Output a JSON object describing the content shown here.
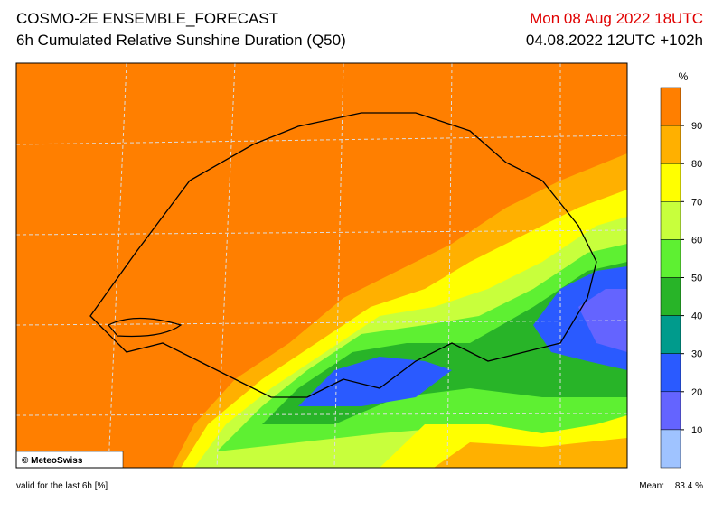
{
  "header": {
    "title": "COSMO-2E ENSEMBLE_FORECAST",
    "subtitle": "6h Cumulated Relative Sunshine Duration (Q50)",
    "valid_time": "Mon 08 Aug 2022 18UTC",
    "run": "04.08.2022 12UTC +102h"
  },
  "legend": {
    "unit": "%",
    "ticks": [
      90,
      80,
      70,
      60,
      50,
      40,
      30,
      20,
      10
    ],
    "colors": [
      "#ff7f00",
      "#ffb000",
      "#ffff00",
      "#c8ff3c",
      "#5ef032",
      "#28b428",
      "#009b8c",
      "#2a5aff",
      "#6464ff",
      "#9fc3ff"
    ]
  },
  "map": {
    "credit": "© MeteoSwiss"
  },
  "footer": {
    "note": "valid for the last 6h [%]",
    "mean_label": "Mean:",
    "mean_value": "83.4 %"
  }
}
